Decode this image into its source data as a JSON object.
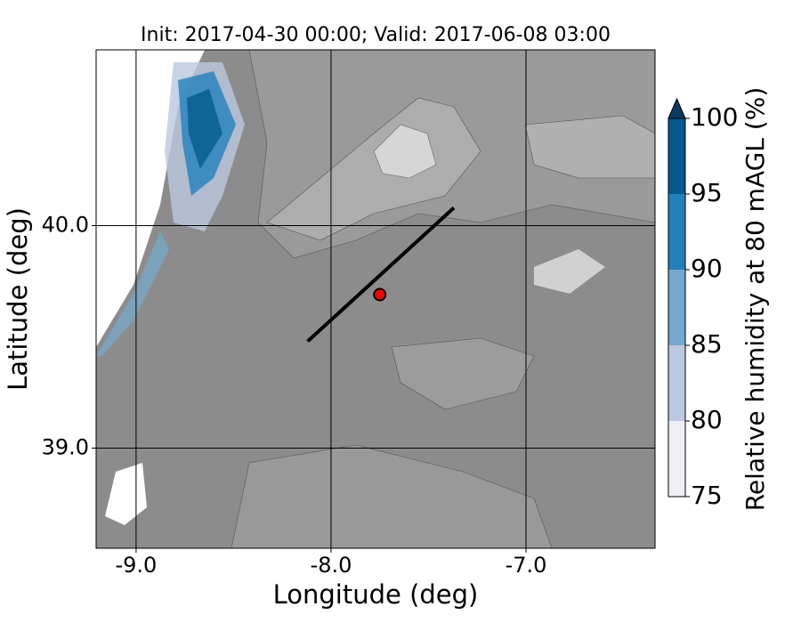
{
  "chart_data": {
    "type": "map",
    "title": "Init: 2017-04-30 00:00; Valid: 2017-06-08 03:00",
    "xlabel": "Longitude (deg)",
    "ylabel": "Latitude (deg)",
    "xlim": [
      -9.205,
      -6.338
    ],
    "ylim": [
      38.55,
      40.79
    ],
    "xticks": [
      {
        "value": -9,
        "label": "-9.0"
      },
      {
        "value": -8,
        "label": "-8.0"
      },
      {
        "value": -7,
        "label": "-7.0"
      }
    ],
    "yticks": [
      {
        "value": 39,
        "label": "39.0"
      },
      {
        "value": 40,
        "label": "40.0"
      }
    ],
    "grid": true,
    "cross_section": {
      "x": [
        -8.12,
        -7.37
      ],
      "y": [
        39.48,
        40.08
      ],
      "color": "#000000"
    },
    "point": {
      "x": -7.75,
      "y": 39.69,
      "color": "#ff0000"
    },
    "colorbar": {
      "label": "Relative humidity at 80 mAGL (%)",
      "ticks": [
        75,
        80,
        85,
        90,
        95,
        100
      ],
      "colors": [
        "#efedf5",
        "#bcc8e0",
        "#74a9cf",
        "#2281bb",
        "#045a8d"
      ],
      "extend_color": "#0b3b5f"
    }
  }
}
